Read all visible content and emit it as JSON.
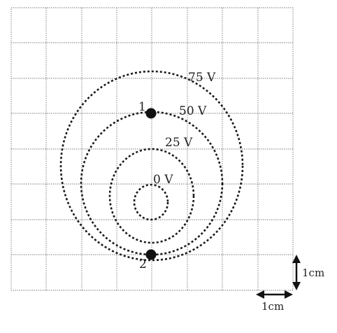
{
  "diagram": {
    "grid": {
      "columns": 8,
      "rows": 8,
      "cell_label": "1cm"
    },
    "equipotentials": [
      {
        "label": "0 V"
      },
      {
        "label": "25 V"
      },
      {
        "label": "50 V"
      },
      {
        "label": "75 V"
      }
    ],
    "points": [
      {
        "label": "1"
      },
      {
        "label": "2"
      }
    ],
    "scale": {
      "vertical_label": "1cm",
      "horizontal_label": "1cm"
    }
  }
}
